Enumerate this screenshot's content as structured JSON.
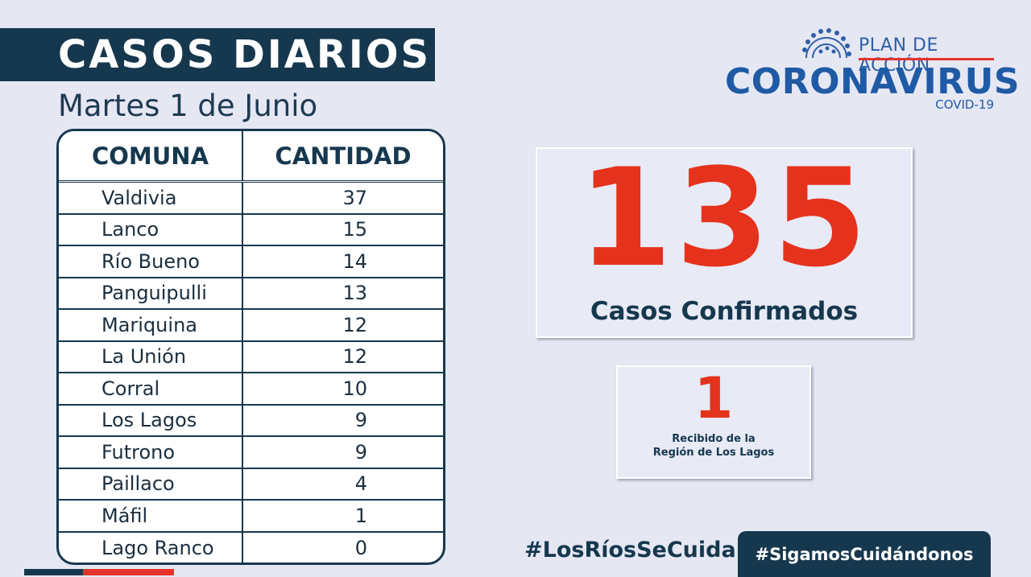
{
  "header": {
    "title": "CASOS DIARIOS",
    "date": "Martes 1 de Junio"
  },
  "logo": {
    "plan": "PLAN DE ACCIÓN",
    "name": "CORONAVIRUS",
    "subtitle": "COVID-19"
  },
  "table": {
    "columns": [
      "COMUNA",
      "CANTIDAD"
    ],
    "rows": [
      {
        "comuna": "Valdivia",
        "cantidad": "37"
      },
      {
        "comuna": "Lanco",
        "cantidad": "15"
      },
      {
        "comuna": "Río Bueno",
        "cantidad": "14"
      },
      {
        "comuna": "Panguipulli",
        "cantidad": "13"
      },
      {
        "comuna": "Mariquina",
        "cantidad": "12"
      },
      {
        "comuna": "La Unión",
        "cantidad": "12"
      },
      {
        "comuna": "Corral",
        "cantidad": "10"
      },
      {
        "comuna": "Los Lagos",
        "cantidad": "9"
      },
      {
        "comuna": "Futrono",
        "cantidad": "9"
      },
      {
        "comuna": "Paillaco",
        "cantidad": "4"
      },
      {
        "comuna": "Máfil",
        "cantidad": "1"
      },
      {
        "comuna": "Lago Ranco",
        "cantidad": "0"
      }
    ]
  },
  "summary": {
    "total": "135",
    "total_label": "Casos Confirmados",
    "received": "1",
    "received_label_line1": "Recibido de la",
    "received_label_line2": "Región de Los Lagos"
  },
  "footer": {
    "hashtag1": "#LosRíosSeCuida",
    "hashtag2": "#SigamosCuidándonos"
  },
  "colors": {
    "navy": "#16384f",
    "red": "#e5321c",
    "background": "#e5e7f3",
    "logo_blue": "#1f5aa5"
  }
}
